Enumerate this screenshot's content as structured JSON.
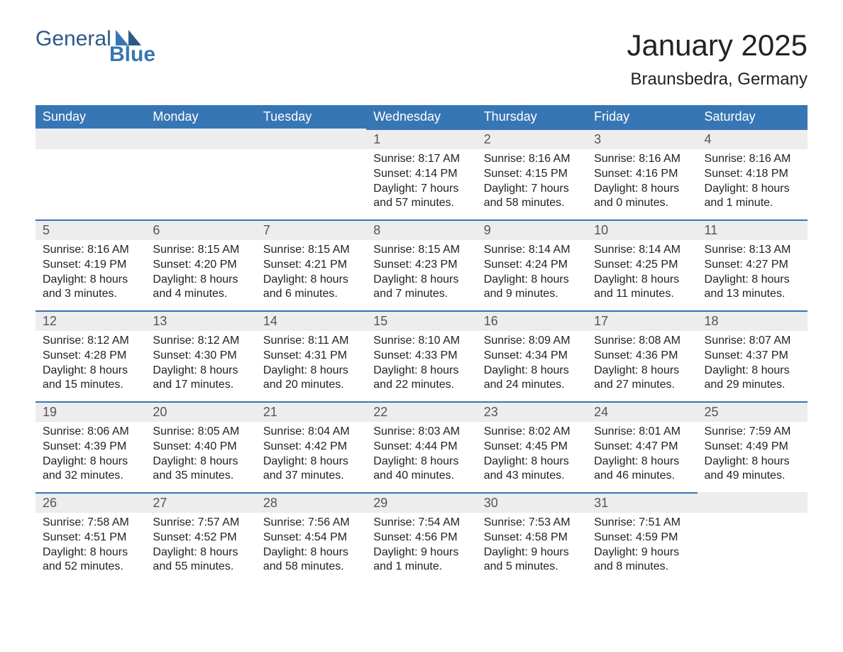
{
  "brand": {
    "general": "General",
    "blue": "Blue"
  },
  "title": "January 2025",
  "location": "Braunsbedra, Germany",
  "colors": {
    "header_bg": "#3776b4",
    "header_text": "#ffffff",
    "daynum_bg": "#ededed",
    "row_border": "#3776b4",
    "text": "#222222",
    "muted": "#555555",
    "background": "#ffffff"
  },
  "typography": {
    "title_fontsize": 42,
    "location_fontsize": 24,
    "dayheader_fontsize": 18,
    "daynum_fontsize": 18,
    "body_fontsize": 16
  },
  "calendar": {
    "type": "table",
    "columns": [
      "Sunday",
      "Monday",
      "Tuesday",
      "Wednesday",
      "Thursday",
      "Friday",
      "Saturday"
    ],
    "weeks": [
      [
        null,
        null,
        null,
        {
          "n": "1",
          "sunrise": "8:17 AM",
          "sunset": "4:14 PM",
          "daylight": "7 hours and 57 minutes."
        },
        {
          "n": "2",
          "sunrise": "8:16 AM",
          "sunset": "4:15 PM",
          "daylight": "7 hours and 58 minutes."
        },
        {
          "n": "3",
          "sunrise": "8:16 AM",
          "sunset": "4:16 PM",
          "daylight": "8 hours and 0 minutes."
        },
        {
          "n": "4",
          "sunrise": "8:16 AM",
          "sunset": "4:18 PM",
          "daylight": "8 hours and 1 minute."
        }
      ],
      [
        {
          "n": "5",
          "sunrise": "8:16 AM",
          "sunset": "4:19 PM",
          "daylight": "8 hours and 3 minutes."
        },
        {
          "n": "6",
          "sunrise": "8:15 AM",
          "sunset": "4:20 PM",
          "daylight": "8 hours and 4 minutes."
        },
        {
          "n": "7",
          "sunrise": "8:15 AM",
          "sunset": "4:21 PM",
          "daylight": "8 hours and 6 minutes."
        },
        {
          "n": "8",
          "sunrise": "8:15 AM",
          "sunset": "4:23 PM",
          "daylight": "8 hours and 7 minutes."
        },
        {
          "n": "9",
          "sunrise": "8:14 AM",
          "sunset": "4:24 PM",
          "daylight": "8 hours and 9 minutes."
        },
        {
          "n": "10",
          "sunrise": "8:14 AM",
          "sunset": "4:25 PM",
          "daylight": "8 hours and 11 minutes."
        },
        {
          "n": "11",
          "sunrise": "8:13 AM",
          "sunset": "4:27 PM",
          "daylight": "8 hours and 13 minutes."
        }
      ],
      [
        {
          "n": "12",
          "sunrise": "8:12 AM",
          "sunset": "4:28 PM",
          "daylight": "8 hours and 15 minutes."
        },
        {
          "n": "13",
          "sunrise": "8:12 AM",
          "sunset": "4:30 PM",
          "daylight": "8 hours and 17 minutes."
        },
        {
          "n": "14",
          "sunrise": "8:11 AM",
          "sunset": "4:31 PM",
          "daylight": "8 hours and 20 minutes."
        },
        {
          "n": "15",
          "sunrise": "8:10 AM",
          "sunset": "4:33 PM",
          "daylight": "8 hours and 22 minutes."
        },
        {
          "n": "16",
          "sunrise": "8:09 AM",
          "sunset": "4:34 PM",
          "daylight": "8 hours and 24 minutes."
        },
        {
          "n": "17",
          "sunrise": "8:08 AM",
          "sunset": "4:36 PM",
          "daylight": "8 hours and 27 minutes."
        },
        {
          "n": "18",
          "sunrise": "8:07 AM",
          "sunset": "4:37 PM",
          "daylight": "8 hours and 29 minutes."
        }
      ],
      [
        {
          "n": "19",
          "sunrise": "8:06 AM",
          "sunset": "4:39 PM",
          "daylight": "8 hours and 32 minutes."
        },
        {
          "n": "20",
          "sunrise": "8:05 AM",
          "sunset": "4:40 PM",
          "daylight": "8 hours and 35 minutes."
        },
        {
          "n": "21",
          "sunrise": "8:04 AM",
          "sunset": "4:42 PM",
          "daylight": "8 hours and 37 minutes."
        },
        {
          "n": "22",
          "sunrise": "8:03 AM",
          "sunset": "4:44 PM",
          "daylight": "8 hours and 40 minutes."
        },
        {
          "n": "23",
          "sunrise": "8:02 AM",
          "sunset": "4:45 PM",
          "daylight": "8 hours and 43 minutes."
        },
        {
          "n": "24",
          "sunrise": "8:01 AM",
          "sunset": "4:47 PM",
          "daylight": "8 hours and 46 minutes."
        },
        {
          "n": "25",
          "sunrise": "7:59 AM",
          "sunset": "4:49 PM",
          "daylight": "8 hours and 49 minutes."
        }
      ],
      [
        {
          "n": "26",
          "sunrise": "7:58 AM",
          "sunset": "4:51 PM",
          "daylight": "8 hours and 52 minutes."
        },
        {
          "n": "27",
          "sunrise": "7:57 AM",
          "sunset": "4:52 PM",
          "daylight": "8 hours and 55 minutes."
        },
        {
          "n": "28",
          "sunrise": "7:56 AM",
          "sunset": "4:54 PM",
          "daylight": "8 hours and 58 minutes."
        },
        {
          "n": "29",
          "sunrise": "7:54 AM",
          "sunset": "4:56 PM",
          "daylight": "9 hours and 1 minute."
        },
        {
          "n": "30",
          "sunrise": "7:53 AM",
          "sunset": "4:58 PM",
          "daylight": "9 hours and 5 minutes."
        },
        {
          "n": "31",
          "sunrise": "7:51 AM",
          "sunset": "4:59 PM",
          "daylight": "9 hours and 8 minutes."
        },
        null
      ]
    ],
    "labels": {
      "sunrise": "Sunrise: ",
      "sunset": "Sunset: ",
      "daylight": "Daylight: "
    }
  }
}
